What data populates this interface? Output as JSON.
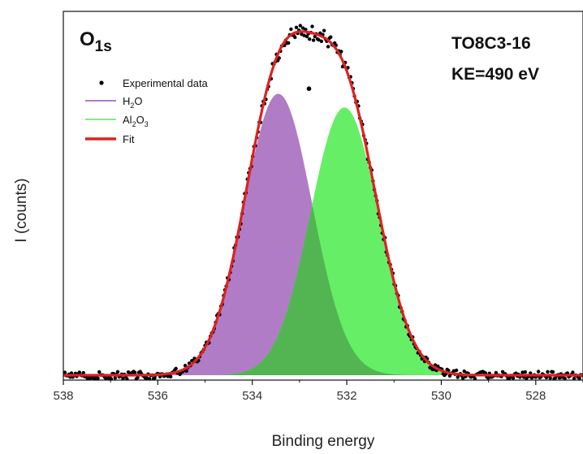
{
  "chart_data": {
    "type": "line",
    "title": "",
    "xlabel": "Binding energy",
    "ylabel": "I (counts)",
    "xlim": [
      538,
      527
    ],
    "x_reversed": true,
    "xticks": [
      "538",
      "536",
      "534",
      "532",
      "530",
      "528"
    ],
    "ylim": [
      0,
      1.08
    ],
    "y_ticklabels_shown": false,
    "legend_position": "top-left",
    "annotations": {
      "orbital": "O",
      "orbital_sub": "1s",
      "sample": "TO8C3-16",
      "kinetic_energy": "KE=490 eV"
    },
    "legend": [
      {
        "label": "Experimental data",
        "style": "dot",
        "color": "#000000"
      },
      {
        "label": "H",
        "sub": "2",
        "label_tail": "O",
        "style": "line",
        "color": "#b07cc6"
      },
      {
        "label": "Al",
        "sub": "2",
        "label_mid": "O",
        "sub2": "3",
        "style": "line",
        "color": "#7cf07c"
      },
      {
        "label": "Fit",
        "style": "thick-line",
        "color": "#dd2222"
      }
    ],
    "series": [
      {
        "name": "H2O",
        "kind": "gaussian",
        "center": 533.45,
        "height": 0.825,
        "sigma": 0.72,
        "color": "#b07cc6"
      },
      {
        "name": "Al2O3",
        "kind": "gaussian",
        "center": 532.05,
        "height": 0.785,
        "sigma": 0.72,
        "color": "#66ee66"
      },
      {
        "name": "Fit",
        "kind": "sum",
        "color": "#dd2222"
      },
      {
        "name": "Experimental data",
        "kind": "scatter",
        "color": "#000000",
        "outlier": {
          "x": 532.8,
          "y": 0.84
        }
      }
    ],
    "overlap_color": "#52b552",
    "background_level": 0.0
  }
}
